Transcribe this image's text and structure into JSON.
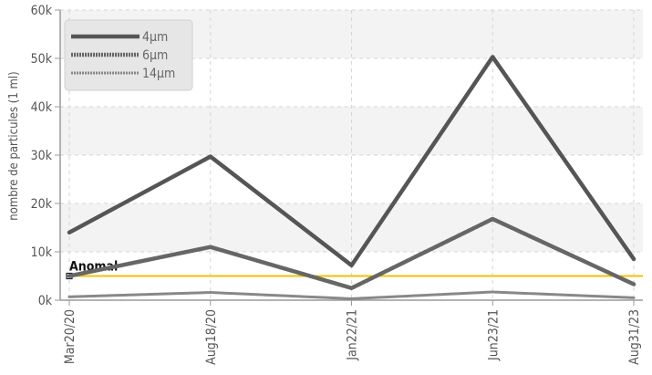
{
  "chart_data": {
    "type": "line",
    "ylabel": "nombre de particules (1 ml)",
    "xlabel": "",
    "x": [
      "Mar20/20",
      "Aug18/20",
      "Jan22/21",
      "Jun23/21",
      "Aug31/23"
    ],
    "ylim": [
      0,
      60000
    ],
    "yticks": [
      0,
      10000,
      20000,
      30000,
      40000,
      50000,
      60000
    ],
    "ytick_labels": [
      "0k",
      "10k",
      "20k",
      "30k",
      "40k",
      "50k",
      "60k"
    ],
    "grid": true,
    "legend_position": "top-left",
    "series": [
      {
        "name": "4μm",
        "values": [
          14000,
          29700,
          7200,
          50300,
          8500
        ],
        "color": "#555555",
        "style": "solid"
      },
      {
        "name": "6μm",
        "values": [
          5000,
          11000,
          2500,
          16800,
          3300
        ],
        "color": "#666666",
        "style": "dotted"
      },
      {
        "name": "14μm",
        "values": [
          700,
          1600,
          300,
          1700,
          500
        ],
        "color": "#888888",
        "style": "dotted-thin"
      }
    ],
    "threshold": {
      "label": "Anomal",
      "value": 5000,
      "color": "#f2c200"
    }
  }
}
